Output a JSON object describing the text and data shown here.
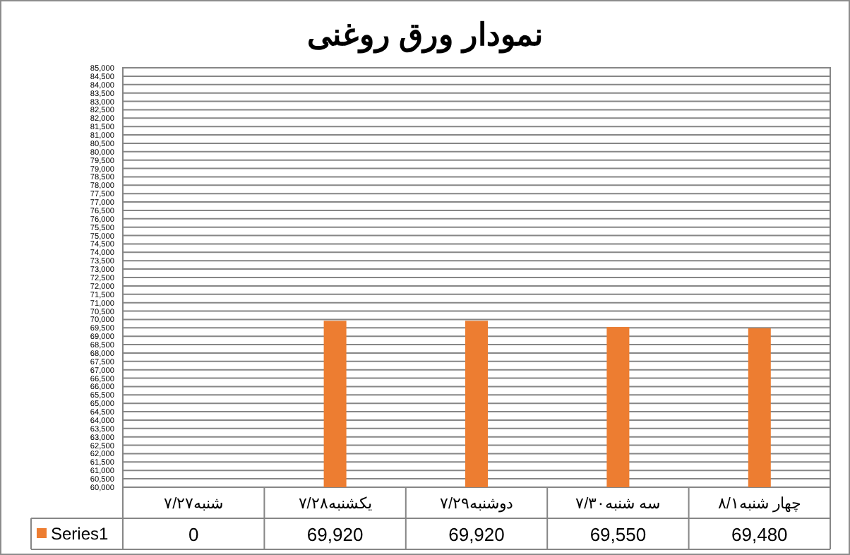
{
  "chart_data": {
    "type": "bar",
    "title": "نمودار ورق روغنی",
    "categories": [
      "شنبه۷/۲۷",
      "یکشنبه۷/۲۸",
      "دوشنبه۷/۲۹",
      "سه شنبه۷/۳۰",
      "چهار شنبه۸/۱"
    ],
    "series": [
      {
        "name": "Series1",
        "color": "#ed7d31",
        "values": [
          null,
          69920,
          69920,
          69550,
          69480
        ],
        "value_labels": [
          "0",
          "69,920",
          "69,920",
          "69,550",
          "69,480"
        ]
      }
    ],
    "ylim": [
      60000,
      85000
    ],
    "yticks": [
      {
        "value": 60000,
        "label": "60,000"
      },
      {
        "value": 60500,
        "label": "60,500"
      },
      {
        "value": 61000,
        "label": "61,000"
      },
      {
        "value": 61500,
        "label": "61,500"
      },
      {
        "value": 62000,
        "label": "62,000"
      },
      {
        "value": 62500,
        "label": "62,500"
      },
      {
        "value": 63000,
        "label": "63,000"
      },
      {
        "value": 63500,
        "label": "63,500"
      },
      {
        "value": 64000,
        "label": "64,000"
      },
      {
        "value": 64500,
        "label": "64,500"
      },
      {
        "value": 65000,
        "label": "65,000"
      },
      {
        "value": 65500,
        "label": "65,500"
      },
      {
        "value": 66000,
        "label": "66,000"
      },
      {
        "value": 66500,
        "label": "66,500"
      },
      {
        "value": 67000,
        "label": "67,000"
      },
      {
        "value": 67500,
        "label": "67,500"
      },
      {
        "value": 68000,
        "label": "68,000"
      },
      {
        "value": 68500,
        "label": "68,500"
      },
      {
        "value": 69000,
        "label": "69,000"
      },
      {
        "value": 69500,
        "label": "69,500"
      },
      {
        "value": 70000,
        "label": "70,000"
      },
      {
        "value": 70500,
        "label": "70,500"
      },
      {
        "value": 71000,
        "label": "71,000"
      },
      {
        "value": 71500,
        "label": "71,500"
      },
      {
        "value": 72000,
        "label": "72,000"
      },
      {
        "value": 72500,
        "label": "72,500"
      },
      {
        "value": 73000,
        "label": "73,000"
      },
      {
        "value": 73500,
        "label": "73,500"
      },
      {
        "value": 74000,
        "label": "74,000"
      },
      {
        "value": 74500,
        "label": "74,500"
      },
      {
        "value": 75000,
        "label": "75,000"
      },
      {
        "value": 75500,
        "label": "75,500"
      },
      {
        "value": 76000,
        "label": "76,000"
      },
      {
        "value": 76500,
        "label": "76,500"
      },
      {
        "value": 77000,
        "label": "77,000"
      },
      {
        "value": 77500,
        "label": "77,500"
      },
      {
        "value": 78000,
        "label": "78,000"
      },
      {
        "value": 78500,
        "label": "78,500"
      },
      {
        "value": 79000,
        "label": "79,000"
      },
      {
        "value": 79500,
        "label": "79,500"
      },
      {
        "value": 80000,
        "label": "80,000"
      },
      {
        "value": 80500,
        "label": "80,500"
      },
      {
        "value": 81000,
        "label": "81,000"
      },
      {
        "value": 81500,
        "label": "81,500"
      },
      {
        "value": 82000,
        "label": "82,000"
      },
      {
        "value": 82500,
        "label": "82,500"
      },
      {
        "value": 83000,
        "label": "83,000"
      },
      {
        "value": 83500,
        "label": "83,500"
      },
      {
        "value": 84000,
        "label": "84,000"
      },
      {
        "value": 84500,
        "label": "84,500"
      },
      {
        "value": 85000,
        "label": "85,000"
      }
    ],
    "grid": "y",
    "legend": "bottom"
  }
}
